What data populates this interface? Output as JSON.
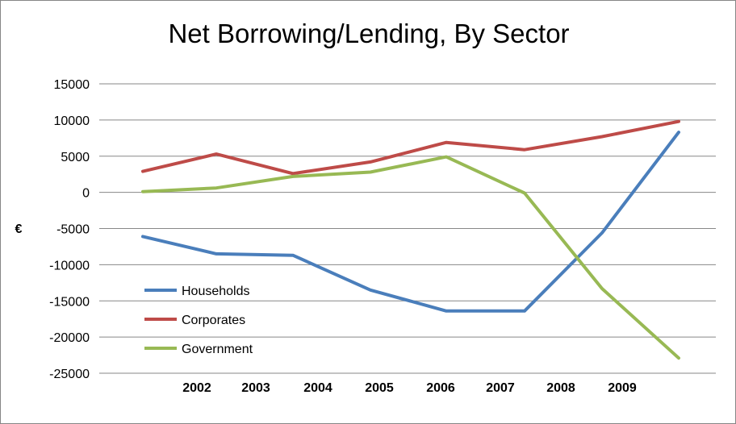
{
  "chart_data": {
    "type": "line",
    "title": "Net Borrowing/Lending, By Sector",
    "xlabel": "",
    "ylabel": "€",
    "ylim": [
      -25000,
      15000
    ],
    "yticks": [
      15000,
      10000,
      5000,
      0,
      -5000,
      -10000,
      -15000,
      -20000,
      -25000
    ],
    "yticks_labels": [
      "15000",
      "10000",
      "5000",
      "0",
      "-5000",
      "-10000",
      "-15000",
      "-20000",
      "-25000"
    ],
    "xtick_labels": [
      "2002",
      "2003",
      "2004",
      "2005",
      "2006",
      "2007",
      "2008",
      "2009"
    ],
    "grid": true,
    "legend_position": "bottom-left",
    "series": [
      {
        "name": "Households",
        "color": "#4a7ebb",
        "values": [
          -6100,
          -8500,
          -8700,
          -13500,
          -16400,
          -16400,
          -5600,
          8300
        ]
      },
      {
        "name": "Corporates",
        "color": "#be4b48",
        "values": [
          2900,
          5300,
          2600,
          4200,
          6900,
          5900,
          7700,
          9800
        ]
      },
      {
        "name": "Government",
        "color": "#98b954",
        "values": [
          100,
          600,
          2200,
          2800,
          4900,
          -100,
          -13300,
          -22900
        ]
      }
    ]
  }
}
